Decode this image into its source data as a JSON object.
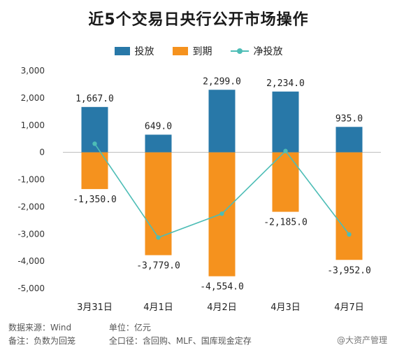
{
  "title": "近5个交易日央行公开市场操作",
  "legend": {
    "items": [
      {
        "label": "投放",
        "color": "#2878a8",
        "kind": "bar"
      },
      {
        "label": "到期",
        "color": "#f5921e",
        "kind": "bar"
      },
      {
        "label": "净投放",
        "color": "#4dbdb6",
        "kind": "line"
      }
    ]
  },
  "chart_data": {
    "type": "bar",
    "categories": [
      "3月31日",
      "4月1日",
      "4月2日",
      "4月3日",
      "4月7日"
    ],
    "series": [
      {
        "name": "投放",
        "type": "bar",
        "color": "#2878a8",
        "values": [
          1667.0,
          649.0,
          2299.0,
          2234.0,
          935.0
        ],
        "labels": [
          "1,667.0",
          "649.0",
          "2,299.0",
          "2,234.0",
          "935.0"
        ]
      },
      {
        "name": "到期",
        "type": "bar",
        "color": "#f5921e",
        "values": [
          -1350.0,
          -3779.0,
          -4554.0,
          -2185.0,
          -3952.0
        ],
        "labels": [
          "-1,350.0",
          "-3,779.0",
          "-4,554.0",
          "-2,185.0",
          "-3,952.0"
        ]
      },
      {
        "name": "净投放",
        "type": "line",
        "color": "#4dbdb6",
        "values": [
          317.0,
          -3130.0,
          -2255.0,
          49.0,
          -3017.0
        ]
      }
    ],
    "ylim": [
      -5000,
      3000
    ],
    "yticks": [
      3000,
      2000,
      1000,
      0,
      -1000,
      -2000,
      -3000,
      -4000,
      -5000
    ],
    "ytick_labels": [
      "3,000",
      "2,000",
      "1,000",
      "0",
      "-1,000",
      "-2,000",
      "-3,000",
      "-4,000",
      "-5,000"
    ],
    "grid": false,
    "legend_position": "top-center"
  },
  "footer": {
    "source": "数据来源：Wind",
    "unit": "单位：亿元",
    "note": "备注：负数为回笼",
    "scope": "全口径：含回购、MLF、国库现金定存"
  },
  "watermark": "@大资产管理"
}
